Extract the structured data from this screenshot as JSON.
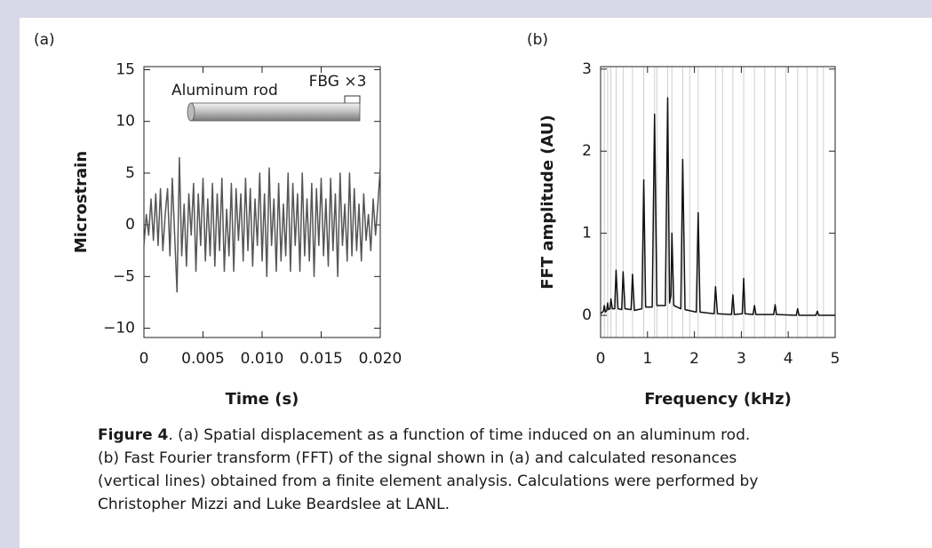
{
  "chart_data": [
    {
      "type": "line",
      "panel": "(a)",
      "ylabel": "Microstrain",
      "xlabel": "Time (s)",
      "annotations": [
        "Aluminum rod",
        "FBG ×3"
      ],
      "color": "#555555",
      "xlim": [
        0,
        0.02
      ],
      "ylim": [
        -10.9,
        15.3
      ],
      "xticks": [
        0,
        0.005,
        {
          "value": 0.01,
          "label": "0.010"
        },
        0.015,
        {
          "value": 0.02,
          "label": "0.020"
        }
      ],
      "yticks": [
        {
          "value": -10,
          "label": "−10"
        },
        {
          "value": -5,
          "label": "−5"
        },
        0,
        5,
        10,
        15
      ],
      "x": [
        0,
        0.0002,
        0.0004,
        0.0006,
        0.0008,
        0.001,
        0.0012,
        0.0014,
        0.0016,
        0.0018,
        0.002,
        0.0022,
        0.0024,
        0.0026,
        0.0028,
        0.003,
        0.0032,
        0.0034,
        0.0036,
        0.0038,
        0.004,
        0.0042,
        0.0044,
        0.0046,
        0.0048,
        0.005,
        0.0052,
        0.0054,
        0.0056,
        0.0058,
        0.006,
        0.0062,
        0.0064,
        0.0066,
        0.0068,
        0.007,
        0.0072,
        0.0074,
        0.0076,
        0.0078,
        0.008,
        0.0082,
        0.0084,
        0.0086,
        0.0088,
        0.009,
        0.0092,
        0.0094,
        0.0096,
        0.0098,
        0.01,
        0.0102,
        0.0104,
        0.0106,
        0.0108,
        0.011,
        0.0112,
        0.0114,
        0.0116,
        0.0118,
        0.012,
        0.0122,
        0.0124,
        0.0126,
        0.0128,
        0.013,
        0.0132,
        0.0134,
        0.0136,
        0.0138,
        0.014,
        0.0142,
        0.0144,
        0.0146,
        0.0148,
        0.015,
        0.0152,
        0.0154,
        0.0156,
        0.0158,
        0.016,
        0.0162,
        0.0164,
        0.0166,
        0.0168,
        0.017,
        0.0172,
        0.0174,
        0.0176,
        0.0178,
        0.018,
        0.0182,
        0.0184,
        0.0186,
        0.0188,
        0.019,
        0.0192,
        0.0194,
        0.0196,
        0.0198,
        0.02
      ],
      "values": [
        -2,
        1,
        -1,
        2.5,
        -1.5,
        3,
        -2,
        3.5,
        -2.5,
        1,
        3.5,
        -3,
        4.5,
        -1,
        -6.5,
        6.5,
        -3,
        2,
        -4,
        3,
        -1,
        4,
        -4.5,
        3,
        -2,
        4.5,
        -3.5,
        2.5,
        -3,
        4,
        -4,
        3,
        -2.5,
        4.5,
        -4.5,
        1.5,
        -3,
        4,
        -4.5,
        3.5,
        -1.5,
        3,
        -3.5,
        4.5,
        -2.5,
        3.5,
        -4,
        2.5,
        -2,
        5,
        -3.5,
        3,
        -5,
        5.5,
        -2,
        2.5,
        -4.5,
        4,
        -3.5,
        2,
        -3,
        5,
        -4.5,
        4,
        -2,
        3,
        -4.5,
        5,
        -3,
        2.5,
        -3.5,
        4,
        -5,
        3.5,
        -2,
        4.5,
        -3,
        2.5,
        -4,
        4.5,
        -2.5,
        3,
        -5,
        5,
        -2,
        2,
        -3.5,
        5,
        -3,
        3.5,
        -2.5,
        2,
        -3.5,
        3,
        -1.5,
        1,
        -2.5,
        2.5,
        -1,
        2,
        5.5
      ]
    },
    {
      "type": "line",
      "panel": "(b)",
      "ylabel": "FFT amplitude (AU)",
      "xlabel": "Frequency (kHz)",
      "color": "#111111",
      "xlim": [
        0,
        5
      ],
      "ylim": [
        -0.27,
        3.03
      ],
      "xticks": [
        0,
        1,
        2,
        3,
        4,
        5
      ],
      "yticks": [
        0,
        1,
        2,
        3
      ],
      "resonances": [
        0.08,
        0.15,
        0.22,
        0.33,
        0.48,
        0.68,
        0.92,
        1.15,
        1.2,
        1.43,
        1.52,
        1.75,
        1.9,
        2.08,
        2.45,
        2.6,
        2.82,
        3.05,
        3.28,
        3.5,
        3.72,
        3.95,
        4.2,
        4.4,
        4.62,
        4.75
      ],
      "x": [
        0,
        0.06,
        0.08,
        0.1,
        0.13,
        0.15,
        0.17,
        0.2,
        0.22,
        0.25,
        0.3,
        0.33,
        0.37,
        0.45,
        0.48,
        0.52,
        0.65,
        0.68,
        0.72,
        0.88,
        0.92,
        0.96,
        1.1,
        1.15,
        1.2,
        1.38,
        1.43,
        1.47,
        1.5,
        1.52,
        1.56,
        1.71,
        1.75,
        1.8,
        2.04,
        2.08,
        2.12,
        2.42,
        2.45,
        2.49,
        2.79,
        2.82,
        2.85,
        3.02,
        3.05,
        3.08,
        3.25,
        3.28,
        3.31,
        3.69,
        3.72,
        3.75,
        4.17,
        4.2,
        4.23,
        4.59,
        4.62,
        4.65,
        5
      ],
      "values": [
        0.02,
        0.05,
        0.12,
        0.04,
        0.06,
        0.15,
        0.07,
        0.08,
        0.2,
        0.08,
        0.08,
        0.55,
        0.08,
        0.07,
        0.53,
        0.08,
        0.07,
        0.5,
        0.06,
        0.08,
        1.65,
        0.1,
        0.1,
        2.45,
        0.12,
        0.12,
        2.65,
        0.15,
        0.25,
        1.0,
        0.12,
        0.08,
        1.9,
        0.07,
        0.04,
        1.25,
        0.04,
        0.02,
        0.35,
        0.02,
        0.01,
        0.25,
        0.01,
        0.02,
        0.45,
        0.02,
        0.01,
        0.12,
        0.01,
        0.01,
        0.13,
        0.01,
        0,
        0.08,
        0,
        0,
        0.05,
        0,
        0
      ]
    }
  ],
  "caption": {
    "label": "Figure 4",
    "lines": [
      ". (a) Spatial displacement as a function of time induced on an aluminum rod.",
      "(b) Fast Fourier transform (FFT) of the signal shown in (a) and calculated resonances",
      "(vertical lines) obtained from a finite element analysis. Calculations were performed by",
      "Christopher Mizzi and Luke Beardslee at LANL."
    ]
  }
}
